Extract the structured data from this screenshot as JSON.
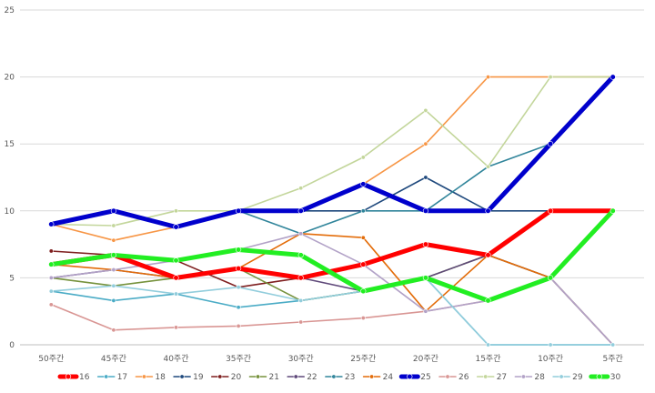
{
  "chart_data": {
    "type": "line",
    "title": "",
    "xlabel": "",
    "ylabel": "",
    "ylim": [
      0,
      25
    ],
    "yticks": [
      0,
      5,
      10,
      15,
      20,
      25
    ],
    "grid": "horizontal",
    "legend_position": "bottom",
    "categories": [
      "50주간",
      "45주간",
      "40주간",
      "35주간",
      "30주간",
      "25주간",
      "20주간",
      "15주간",
      "10주간",
      "5주간"
    ],
    "series": [
      {
        "name": "16",
        "color": "#ff0000",
        "bold": true,
        "values": [
          6.0,
          6.7,
          5.0,
          5.7,
          5.0,
          6.0,
          7.5,
          6.7,
          10.0,
          10.0
        ]
      },
      {
        "name": "17",
        "color": "#4bacc6",
        "bold": false,
        "values": [
          4.0,
          3.3,
          3.8,
          2.8,
          3.3,
          4.0,
          5.0,
          0.0,
          0.0,
          0.0
        ]
      },
      {
        "name": "18",
        "color": "#f79646",
        "bold": false,
        "values": [
          9.0,
          7.8,
          8.8,
          10.0,
          10.0,
          12.0,
          15.0,
          20.0,
          20.0,
          20.0
        ]
      },
      {
        "name": "19",
        "color": "#1f497d",
        "bold": false,
        "values": [
          9.0,
          10.0,
          8.8,
          10.0,
          10.0,
          10.0,
          12.5,
          10.0,
          10.0,
          10.0
        ]
      },
      {
        "name": "20",
        "color": "#7f1f1f",
        "bold": false,
        "values": [
          7.0,
          6.7,
          6.3,
          4.3,
          5.0,
          6.0,
          7.5,
          6.7,
          10.0,
          10.0
        ]
      },
      {
        "name": "21",
        "color": "#76923c",
        "bold": false,
        "values": [
          5.0,
          4.4,
          5.0,
          5.7,
          3.3,
          4.0,
          5.0,
          6.7,
          5.0,
          0.0
        ]
      },
      {
        "name": "22",
        "color": "#5f497a",
        "bold": false,
        "values": [
          5.0,
          5.6,
          5.0,
          5.7,
          5.0,
          4.0,
          5.0,
          6.7,
          5.0,
          0.0
        ]
      },
      {
        "name": "23",
        "color": "#31859b",
        "bold": false,
        "values": [
          9.0,
          10.0,
          8.8,
          10.0,
          8.3,
          10.0,
          10.0,
          13.3,
          15.0,
          20.0
        ]
      },
      {
        "name": "24",
        "color": "#e36c09",
        "bold": false,
        "values": [
          6.0,
          5.6,
          5.0,
          5.7,
          8.3,
          8.0,
          2.5,
          6.7,
          5.0,
          10.0
        ]
      },
      {
        "name": "25",
        "color": "#0000cc",
        "bold": true,
        "values": [
          9.0,
          10.0,
          8.8,
          10.0,
          10.0,
          12.0,
          10.0,
          10.0,
          15.0,
          20.0
        ]
      },
      {
        "name": "26",
        "color": "#d99694",
        "bold": false,
        "values": [
          3.0,
          1.1,
          1.3,
          1.4,
          1.7,
          2.0,
          2.5,
          3.3,
          5.0,
          0.0
        ]
      },
      {
        "name": "27",
        "color": "#c3d69b",
        "bold": false,
        "values": [
          9.0,
          8.9,
          10.0,
          10.0,
          11.7,
          14.0,
          17.5,
          13.3,
          20.0,
          20.0
        ]
      },
      {
        "name": "28",
        "color": "#b2a2c7",
        "bold": false,
        "values": [
          5.0,
          5.6,
          6.3,
          7.1,
          8.3,
          6.0,
          2.5,
          3.3,
          5.0,
          0.0
        ]
      },
      {
        "name": "29",
        "color": "#92cddc",
        "bold": false,
        "values": [
          4.0,
          4.4,
          3.8,
          4.3,
          3.3,
          4.0,
          5.0,
          0.0,
          0.0,
          0.0
        ]
      },
      {
        "name": "30",
        "color": "#22ee22",
        "bold": true,
        "values": [
          6.0,
          6.7,
          6.3,
          7.1,
          6.7,
          4.0,
          5.0,
          3.3,
          5.0,
          10.0
        ]
      }
    ]
  }
}
